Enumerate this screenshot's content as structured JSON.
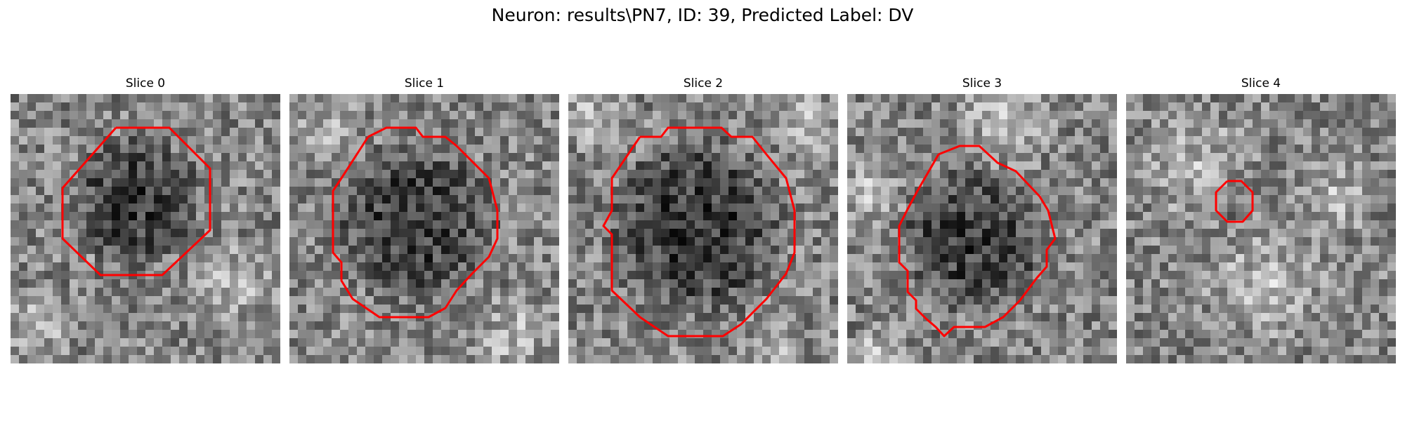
{
  "figure": {
    "title": "Neuron: results\\PN7, ID: 39, Predicted Label: DV",
    "contour_color": "#ff0000"
  },
  "panels": [
    {
      "title": "Slice 0"
    },
    {
      "title": "Slice 1"
    },
    {
      "title": "Slice 2"
    },
    {
      "title": "Slice 3"
    },
    {
      "title": "Slice 4"
    }
  ]
}
